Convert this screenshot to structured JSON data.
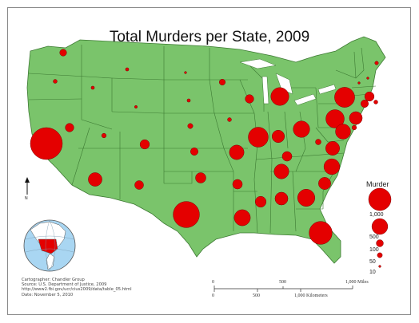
{
  "map": {
    "title": "Total Murders per State, 2009",
    "land_color": "#7ac46b",
    "border_color": "#3d7a33",
    "symbol_color": "#e40000",
    "north_label": "N",
    "legend": {
      "title": "Murder",
      "classes": [
        {
          "label": "1,000",
          "value": 1000
        },
        {
          "label": "500",
          "value": 500
        },
        {
          "label": "100",
          "value": 100
        },
        {
          "label": "50",
          "value": 50
        },
        {
          "label": "10",
          "value": 10
        }
      ]
    },
    "scale_bar": {
      "miles": [
        "0",
        "500",
        "1,000 Miles"
      ],
      "kilometers": [
        "0",
        "500",
        "1,000 Kilometers"
      ]
    },
    "credits": [
      "Cartographer: Chandler Group",
      "Source: U.S. Department of Justice, 2009",
      "http://www2.fbi.gov/ucr/cius2009/data/table_05.html",
      "Date: November 5, 2010"
    ],
    "symbols": [
      {
        "state": "Washington",
        "murders": 90
      },
      {
        "state": "Oregon",
        "murders": 30
      },
      {
        "state": "California",
        "murders": 1970
      },
      {
        "state": "Nevada",
        "murders": 140
      },
      {
        "state": "Idaho",
        "murders": 20
      },
      {
        "state": "Montana",
        "murders": 20
      },
      {
        "state": "Wyoming",
        "murders": 15
      },
      {
        "state": "Utah",
        "murders": 40
      },
      {
        "state": "Arizona",
        "murders": 360
      },
      {
        "state": "Colorado",
        "murders": 170
      },
      {
        "state": "New Mexico",
        "murders": 150
      },
      {
        "state": "North Dakota",
        "murders": 10
      },
      {
        "state": "South Dakota",
        "murders": 20
      },
      {
        "state": "Nebraska",
        "murders": 50
      },
      {
        "state": "Kansas",
        "murders": 110
      },
      {
        "state": "Oklahoma",
        "murders": 210
      },
      {
        "state": "Texas",
        "murders": 1330
      },
      {
        "state": "Minnesota",
        "murders": 70
      },
      {
        "state": "Iowa",
        "murders": 30
      },
      {
        "state": "Missouri",
        "murders": 410
      },
      {
        "state": "Arkansas",
        "murders": 180
      },
      {
        "state": "Louisiana",
        "murders": 500
      },
      {
        "state": "Wisconsin",
        "murders": 140
      },
      {
        "state": "Illinois",
        "murders": 770
      },
      {
        "state": "Michigan",
        "murders": 620
      },
      {
        "state": "Indiana",
        "murders": 300
      },
      {
        "state": "Ohio",
        "murders": 520
      },
      {
        "state": "Kentucky",
        "murders": 180
      },
      {
        "state": "Tennessee",
        "murders": 420
      },
      {
        "state": "Mississippi",
        "murders": 230
      },
      {
        "state": "Alabama",
        "murders": 320
      },
      {
        "state": "Georgia",
        "murders": 570
      },
      {
        "state": "Florida",
        "murders": 1020
      },
      {
        "state": "South Carolina",
        "murders": 290
      },
      {
        "state": "North Carolina",
        "murders": 480
      },
      {
        "state": "Virginia",
        "murders": 370
      },
      {
        "state": "West Virginia",
        "murders": 60
      },
      {
        "state": "Pennsylvania",
        "murders": 650
      },
      {
        "state": "New York",
        "murders": 780
      },
      {
        "state": "New Jersey",
        "murders": 320
      },
      {
        "state": "Maryland",
        "murders": 440
      },
      {
        "state": "Delaware",
        "murders": 40
      },
      {
        "state": "Vermont",
        "murders": 10
      },
      {
        "state": "New Hampshire",
        "murders": 10
      },
      {
        "state": "Maine",
        "murders": 25
      },
      {
        "state": "Massachusetts",
        "murders": 170
      },
      {
        "state": "Rhode Island",
        "murders": 30
      },
      {
        "state": "Connecticut",
        "murders": 110
      }
    ]
  }
}
